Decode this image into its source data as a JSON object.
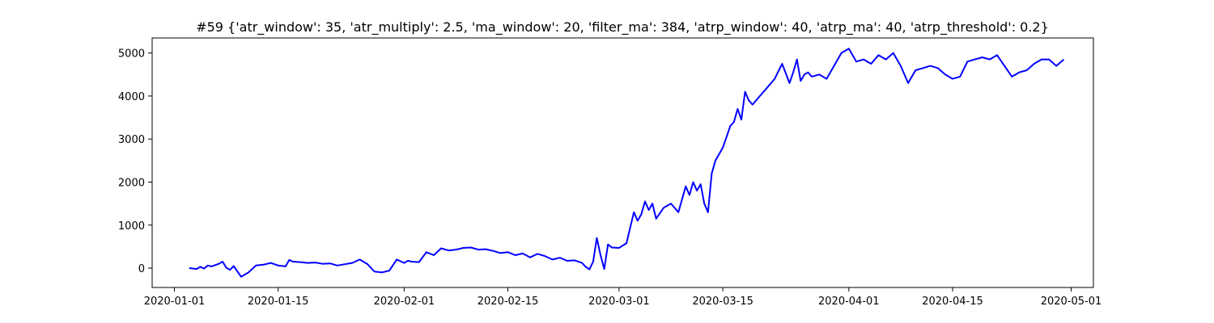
{
  "chart_data": {
    "type": "line",
    "title": "#59 {'atr_window': 35, 'atr_multiply': 2.5, 'ma_window': 20, 'filter_ma': 384, 'atrp_window': 40, 'atrp_ma': 40, 'atrp_threshold': 0.2}",
    "xlabel": "",
    "ylabel": "",
    "xlim": [
      "2019-12-29",
      "2020-05-04"
    ],
    "ylim": [
      -450,
      5350
    ],
    "x_ticks": [
      "2020-01-01",
      "2020-01-15",
      "2020-02-01",
      "2020-02-15",
      "2020-03-01",
      "2020-03-15",
      "2020-04-01",
      "2020-04-15",
      "2020-05-01"
    ],
    "y_ticks": [
      0,
      1000,
      2000,
      3000,
      4000,
      5000
    ],
    "grid": false,
    "legend": "none",
    "series": [
      {
        "color": "#0000ff",
        "x": [
          "2020-01-03",
          "2020-01-04",
          "2020-01-04",
          "2020-01-05",
          "2020-01-05",
          "2020-01-06",
          "2020-01-07",
          "2020-01-07",
          "2020-01-08",
          "2020-01-08",
          "2020-01-09",
          "2020-01-10",
          "2020-01-11",
          "2020-01-12",
          "2020-01-13",
          "2020-01-14",
          "2020-01-15",
          "2020-01-16",
          "2020-01-16",
          "2020-01-17",
          "2020-01-18",
          "2020-01-19",
          "2020-01-20",
          "2020-01-21",
          "2020-01-22",
          "2020-01-23",
          "2020-01-24",
          "2020-01-25",
          "2020-01-26",
          "2020-01-27",
          "2020-01-28",
          "2020-01-29",
          "2020-01-30",
          "2020-01-31",
          "2020-02-01",
          "2020-02-01",
          "2020-02-02",
          "2020-02-03",
          "2020-02-04",
          "2020-02-05",
          "2020-02-06",
          "2020-02-07",
          "2020-02-08",
          "2020-02-09",
          "2020-02-10",
          "2020-02-11",
          "2020-02-12",
          "2020-02-13",
          "2020-02-14",
          "2020-02-15",
          "2020-02-16",
          "2020-02-17",
          "2020-02-18",
          "2020-02-19",
          "2020-02-20",
          "2020-02-21",
          "2020-02-22",
          "2020-02-23",
          "2020-02-24",
          "2020-02-25",
          "2020-02-25",
          "2020-02-26",
          "2020-02-26",
          "2020-02-27",
          "2020-02-27",
          "2020-02-28",
          "2020-02-28",
          "2020-02-29",
          "2020-03-01",
          "2020-03-02",
          "2020-03-03",
          "2020-03-03",
          "2020-03-04",
          "2020-03-04",
          "2020-03-05",
          "2020-03-05",
          "2020-03-06",
          "2020-03-07",
          "2020-03-08",
          "2020-03-09",
          "2020-03-10",
          "2020-03-10",
          "2020-03-11",
          "2020-03-11",
          "2020-03-12",
          "2020-03-12",
          "2020-03-13",
          "2020-03-13",
          "2020-03-14",
          "2020-03-15",
          "2020-03-16",
          "2020-03-16",
          "2020-03-17",
          "2020-03-17",
          "2020-03-18",
          "2020-03-18",
          "2020-03-19",
          "2020-03-20",
          "2020-03-21",
          "2020-03-22",
          "2020-03-23",
          "2020-03-24",
          "2020-03-24",
          "2020-03-25",
          "2020-03-25",
          "2020-03-26",
          "2020-03-26",
          "2020-03-27",
          "2020-03-28",
          "2020-03-29",
          "2020-03-30",
          "2020-03-31",
          "2020-04-01",
          "2020-04-02",
          "2020-04-03",
          "2020-04-04",
          "2020-04-05",
          "2020-04-06",
          "2020-04-07",
          "2020-04-08",
          "2020-04-09",
          "2020-04-10",
          "2020-04-11",
          "2020-04-12",
          "2020-04-13",
          "2020-04-14",
          "2020-04-15",
          "2020-04-16",
          "2020-04-17",
          "2020-04-18",
          "2020-04-19",
          "2020-04-20",
          "2020-04-21",
          "2020-04-22",
          "2020-04-23",
          "2020-04-24",
          "2020-04-25",
          "2020-04-26",
          "2020-04-27",
          "2020-04-28",
          "2020-04-29",
          "2020-04-30"
        ],
        "y": [
          0,
          -20,
          30,
          -10,
          60,
          40,
          100,
          150,
          10,
          -40,
          50,
          -200,
          -100,
          60,
          80,
          120,
          60,
          40,
          190,
          150,
          140,
          120,
          130,
          100,
          110,
          60,
          90,
          120,
          200,
          100,
          -80,
          -100,
          -60,
          200,
          120,
          170,
          150,
          140,
          370,
          300,
          460,
          410,
          430,
          470,
          480,
          430,
          440,
          400,
          350,
          370,
          300,
          340,
          250,
          330,
          280,
          200,
          240,
          170,
          180,
          120,
          30,
          -30,
          150,
          700,
          300,
          -20,
          550,
          480,
          470,
          580,
          1300,
          1100,
          1250,
          1550,
          1350,
          1500,
          1150,
          1400,
          1500,
          1300,
          1900,
          1700,
          2000,
          1800,
          1950,
          1500,
          1300,
          2200,
          2500,
          2800,
          3300,
          3400,
          3700,
          3450,
          4100,
          3900,
          3800,
          4000,
          4200,
          4400,
          4750,
          4300,
          4550,
          4850,
          4350,
          4500,
          4550,
          4450,
          4500,
          4400,
          4700,
          5000,
          5100,
          4800,
          4850,
          4750,
          4950,
          4850,
          5000,
          4700,
          4300,
          4600,
          4650,
          4700,
          4650,
          4500,
          4400,
          4450,
          4800,
          4850,
          4900,
          4850,
          4950,
          4700,
          4450,
          4550,
          4600,
          4750,
          4850,
          4850,
          4700,
          4850
        ]
      }
    ]
  }
}
